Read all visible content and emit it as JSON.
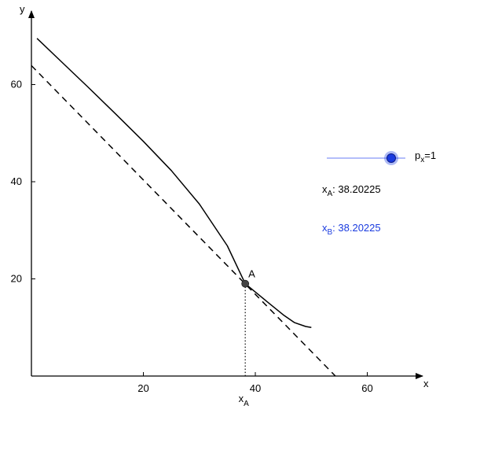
{
  "chart_data": {
    "type": "line",
    "title": "",
    "xlabel": "x",
    "ylabel": "y",
    "xlim": [
      0,
      70
    ],
    "ylim": [
      0,
      75
    ],
    "x_ticks": [
      20,
      40,
      60
    ],
    "y_ticks": [
      20,
      40,
      60
    ],
    "grid": false,
    "series": [
      {
        "style": "solid",
        "x": [
          1,
          5,
          10,
          15,
          20,
          25,
          30,
          35,
          38.2,
          42,
          45,
          47,
          49,
          50
        ],
        "y": [
          69.5,
          65.1,
          59.6,
          54.0,
          48.3,
          42.3,
          35.4,
          26.8,
          19.0,
          15.4,
          12.6,
          11.0,
          10.2,
          10.0
        ]
      },
      {
        "style": "dashed",
        "x": [
          0,
          54.3
        ],
        "y": [
          63.9,
          0
        ]
      }
    ],
    "points": [
      {
        "label": "A",
        "x": 38.2,
        "y": 19.0,
        "color": "#444444"
      }
    ],
    "annotations": [
      {
        "label_main": "x",
        "label_sub": "A",
        "x": 38.2
      }
    ]
  },
  "slider": {
    "name_main": "p",
    "name_sub": "x",
    "value_text": "=1",
    "value": 1,
    "min": -5,
    "max": 5,
    "track_color": "#9aa8f8",
    "knob_color": "#1a3bdf"
  },
  "readouts": [
    {
      "main": "x",
      "sub": "A",
      "value": ": 38.20225",
      "color": "#000000"
    },
    {
      "main": "x",
      "sub": "B",
      "value": ": 38.20225",
      "color": "#1a3bdf"
    }
  ]
}
